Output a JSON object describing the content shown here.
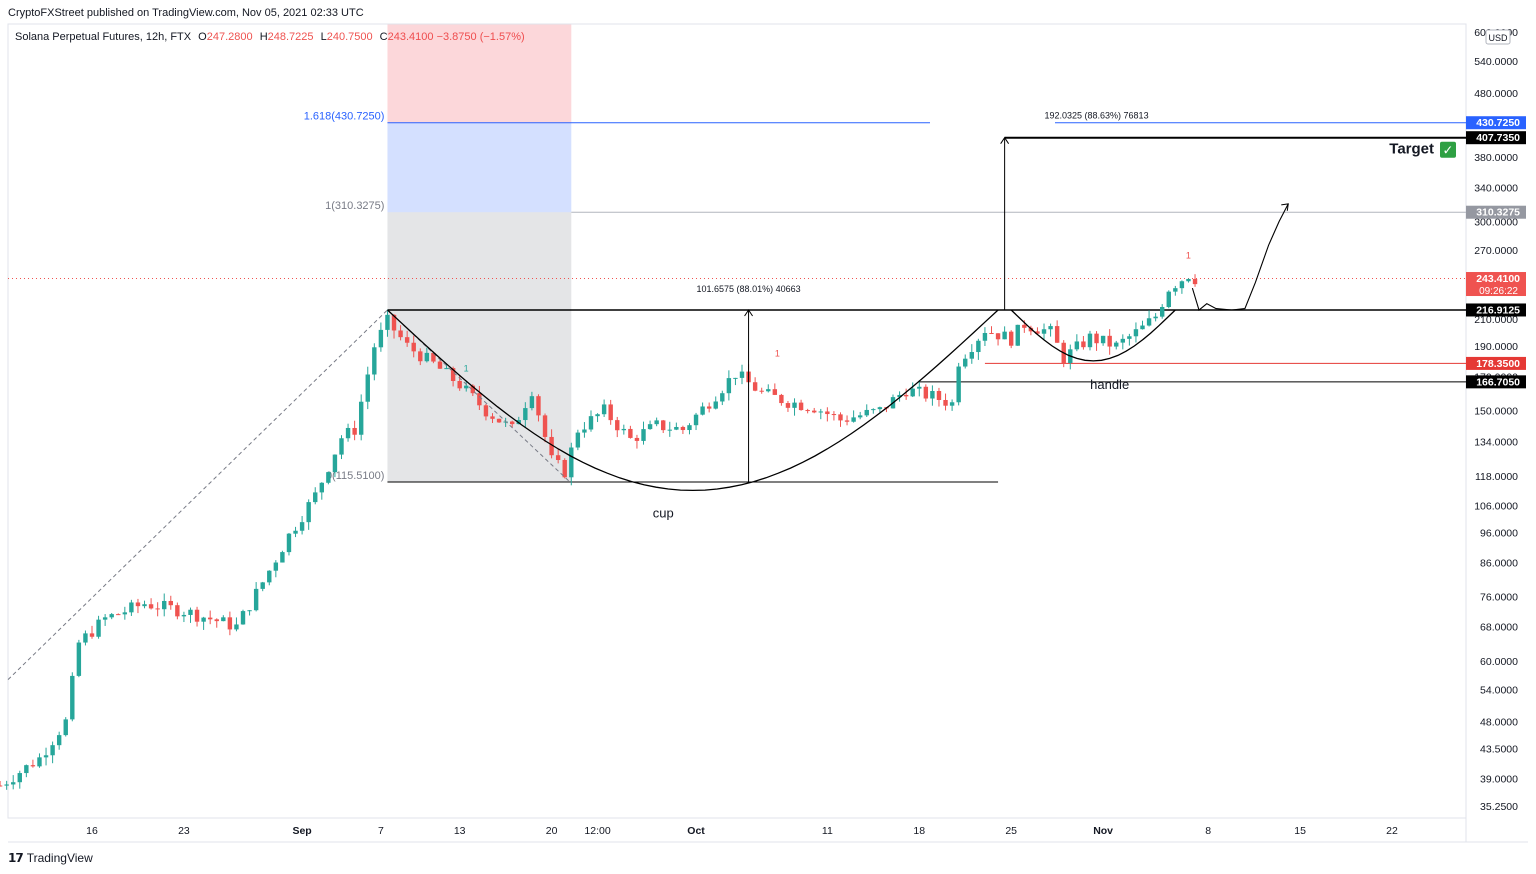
{
  "publisher": "CryptoFXStreet published on TradingView.com, Nov 05, 2021 02:33 UTC",
  "legend": {
    "symbol": "Solana Perpetual Futures, 12h, FTX",
    "o_label": "O",
    "o": "247.2800",
    "h_label": "H",
    "h": "248.7225",
    "l_label": "L",
    "l": "240.7500",
    "c_label": "C",
    "c": "243.4100",
    "change": "−3.8750 (−1.57%)"
  },
  "footer_brand": "TradingView",
  "chart_data": {
    "type": "candlestick",
    "scale": "log",
    "currency": "USD",
    "y_ticks": [
      35.25,
      39.0,
      43.5,
      48.0,
      54.0,
      60.0,
      68.0,
      76.0,
      86.0,
      96.0,
      106.0,
      118.0,
      134.0,
      150.0,
      170.0,
      190.0,
      210.0,
      270.0,
      300.0,
      340.0,
      380.0,
      480.0,
      540.0,
      600.0
    ],
    "y_tick_labels": [
      "35.2500",
      "39.0000",
      "43.5000",
      "48.0000",
      "54.0000",
      "60.0000",
      "68.0000",
      "76.0000",
      "86.0000",
      "96.0000",
      "106.0000",
      "118.0000",
      "134.0000",
      "150.0000",
      "170.0000",
      "190.0000",
      "210.0000",
      "270.0000",
      "300.0000",
      "340.0000",
      "380.0000",
      "480.0000",
      "540.0000",
      "600.0000"
    ],
    "x_ticks": [
      "16",
      "23",
      "Sep",
      "7",
      "13",
      "20",
      "12:00",
      "Oct",
      "11",
      "18",
      "25",
      "Nov",
      "8",
      "15",
      "22"
    ],
    "x_tick_days": [
      16,
      23,
      32,
      38,
      44,
      51,
      54.5,
      62,
      72,
      79,
      86,
      93,
      101,
      108,
      115
    ],
    "price_tags": [
      {
        "label": "430.7250",
        "value": 430.725,
        "color": "#2962ff"
      },
      {
        "label": "407.7350",
        "value": 407.735,
        "color": "#000000"
      },
      {
        "label": "310.3275",
        "value": 310.3275,
        "color": "#9598a1"
      },
      {
        "label": "243.4100",
        "sub": "09:26:22",
        "value": 243.41,
        "color": "#ef5350"
      },
      {
        "label": "216.9125",
        "value": 216.9125,
        "color": "#000000"
      },
      {
        "label": "178.3500",
        "value": 178.35,
        "color": "#e53935"
      },
      {
        "label": "166.7050",
        "value": 166.705,
        "color": "#000000"
      }
    ],
    "fib_levels": [
      {
        "label": "1.618(430.7250)",
        "ratio": 1.618,
        "value": 430.725
      },
      {
        "label": "1(310.3275)",
        "ratio": 1,
        "value": 310.3275
      },
      {
        "label": "0(115.5100)",
        "ratio": 0,
        "value": 115.51
      }
    ],
    "annotations": {
      "cup_label": "cup",
      "handle_label": "handle",
      "target_label": "Target",
      "target_check": "✓",
      "cup_measure": "101.6575 (88.01%) 40663",
      "target_measure": "192.0325 (88.63%) 76813",
      "red_mark": "1",
      "green_mark": "1"
    },
    "levels": {
      "neckline": 216.9125,
      "target": 407.735,
      "handle_high": 178.35,
      "handle_low": 166.705,
      "cup_bottom": 115.51,
      "swing_high": 216.9125
    },
    "anchors": [
      {
        "day": 9.0,
        "price": 38.0
      },
      {
        "day": 12.0,
        "price": 42.0
      },
      {
        "day": 14.0,
        "price": 48.0
      },
      {
        "day": 15.0,
        "price": 64.0
      },
      {
        "day": 17.0,
        "price": 70.0
      },
      {
        "day": 20.0,
        "price": 74.0
      },
      {
        "day": 23.0,
        "price": 72.0
      },
      {
        "day": 25.0,
        "price": 70.0
      },
      {
        "day": 27.0,
        "price": 68.0
      },
      {
        "day": 29.0,
        "price": 80.0
      },
      {
        "day": 31.0,
        "price": 95.0
      },
      {
        "day": 33.0,
        "price": 110.0
      },
      {
        "day": 35.0,
        "price": 136.0
      },
      {
        "day": 36.0,
        "price": 140.0
      },
      {
        "day": 37.5,
        "price": 190.0
      },
      {
        "day": 38.5,
        "price": 208.0
      },
      {
        "day": 40.0,
        "price": 190.0
      },
      {
        "day": 42.0,
        "price": 178.0
      },
      {
        "day": 44.0,
        "price": 165.0
      },
      {
        "day": 46.0,
        "price": 150.0
      },
      {
        "day": 48.0,
        "price": 140.0
      },
      {
        "day": 49.5,
        "price": 162.0
      },
      {
        "day": 51.0,
        "price": 125.0
      },
      {
        "day": 52.0,
        "price": 120.0
      },
      {
        "day": 53.0,
        "price": 140.0
      },
      {
        "day": 55.0,
        "price": 150.0
      },
      {
        "day": 57.0,
        "price": 135.0
      },
      {
        "day": 59.0,
        "price": 142.0
      },
      {
        "day": 61.0,
        "price": 140.0
      },
      {
        "day": 63.0,
        "price": 155.0
      },
      {
        "day": 65.0,
        "price": 172.0
      },
      {
        "day": 67.0,
        "price": 160.0
      },
      {
        "day": 69.0,
        "price": 155.0
      },
      {
        "day": 71.0,
        "price": 152.0
      },
      {
        "day": 73.0,
        "price": 145.0
      },
      {
        "day": 76.0,
        "price": 150.0
      },
      {
        "day": 78.0,
        "price": 162.0
      },
      {
        "day": 80.0,
        "price": 158.0
      },
      {
        "day": 81.5,
        "price": 154.0
      },
      {
        "day": 82.0,
        "price": 180.0
      },
      {
        "day": 84.0,
        "price": 202.0
      },
      {
        "day": 86.0,
        "price": 195.0
      },
      {
        "day": 87.0,
        "price": 206.0
      },
      {
        "day": 89.0,
        "price": 200.0
      },
      {
        "day": 90.0,
        "price": 182.0
      },
      {
        "day": 92.0,
        "price": 196.0
      },
      {
        "day": 94.0,
        "price": 190.0
      },
      {
        "day": 96.0,
        "price": 203.0
      },
      {
        "day": 97.0,
        "price": 212.0
      },
      {
        "day": 98.0,
        "price": 235.0
      },
      {
        "day": 99.5,
        "price": 247.0
      },
      {
        "day": 100.0,
        "price": 243.4
      }
    ]
  }
}
